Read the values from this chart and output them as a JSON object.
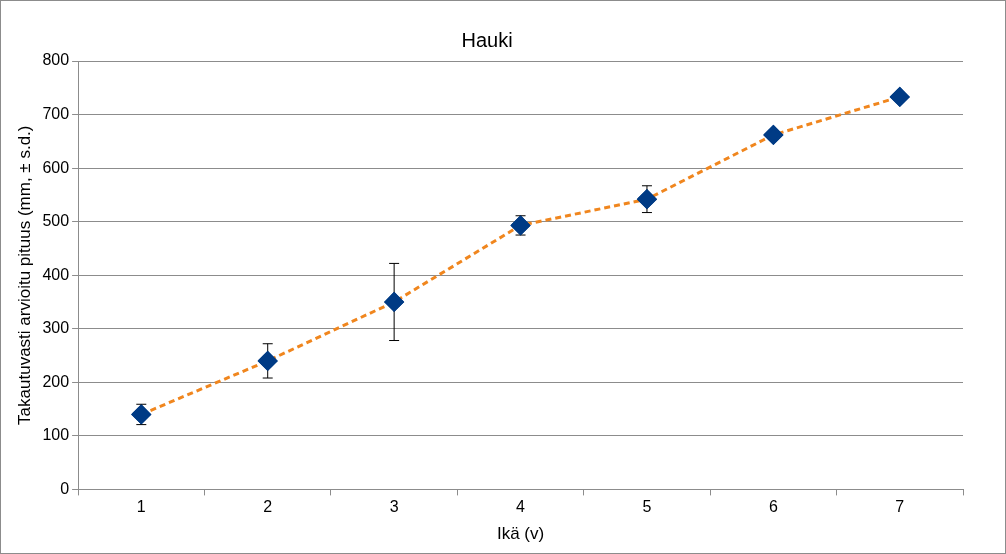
{
  "chart_data": {
    "type": "line",
    "title": "Hauki",
    "xlabel": "Ikä (v)",
    "ylabel": "Takautuvasti arvioitu pituus (mm, ± s.d.)",
    "categories": [
      "1",
      "2",
      "3",
      "4",
      "5",
      "6",
      "7"
    ],
    "series": [
      {
        "color": "#f0861e",
        "colors": [
          "#003b85",
          "#003b85",
          "#003b85",
          "#003b85",
          "#003b85",
          "#003b85",
          "#003b85"
        ],
        "values": [
          140,
          240,
          350,
          493,
          542,
          662,
          733
        ],
        "errors": [
          19,
          32,
          72,
          18,
          25,
          null,
          null
        ]
      }
    ],
    "ylim": [
      0,
      800
    ],
    "yticks": [
      0,
      100,
      200,
      300,
      400,
      500,
      600,
      700,
      800
    ],
    "grid": "y",
    "legend": false,
    "marker": "diamond",
    "line_style": "dashed"
  }
}
